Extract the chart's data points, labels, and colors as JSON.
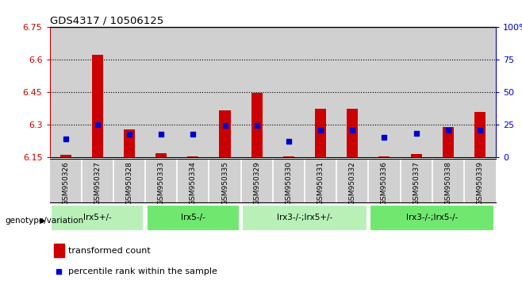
{
  "title": "GDS4317 / 10506125",
  "samples": [
    "GSM950326",
    "GSM950327",
    "GSM950328",
    "GSM950333",
    "GSM950334",
    "GSM950335",
    "GSM950329",
    "GSM950330",
    "GSM950331",
    "GSM950332",
    "GSM950336",
    "GSM950337",
    "GSM950338",
    "GSM950339"
  ],
  "red_values": [
    6.16,
    6.62,
    6.28,
    6.17,
    6.155,
    6.365,
    6.445,
    6.155,
    6.375,
    6.375,
    6.155,
    6.165,
    6.29,
    6.36
  ],
  "blue_values": [
    6.235,
    6.3,
    6.258,
    6.258,
    6.258,
    6.298,
    6.298,
    6.225,
    6.275,
    6.275,
    6.242,
    6.262,
    6.275,
    6.275
  ],
  "ymin": 6.15,
  "ymax": 6.75,
  "yticks_left": [
    6.15,
    6.3,
    6.45,
    6.6,
    6.75
  ],
  "ytick_left_labels": [
    "6.15",
    "6.3",
    "6.45",
    "6.6",
    "6.75"
  ],
  "yticks_right_pct": [
    0,
    25,
    50,
    75,
    100
  ],
  "ytick_right_labels": [
    "0",
    "25",
    "50",
    "75",
    "100%"
  ],
  "groups": [
    {
      "label": "lrx5+/-",
      "start": 0,
      "end": 3,
      "color": "#b8f0b8"
    },
    {
      "label": "lrx5-/-",
      "start": 3,
      "end": 6,
      "color": "#70e870"
    },
    {
      "label": "lrx3-/-;lrx5+/-",
      "start": 6,
      "end": 10,
      "color": "#b8f0b8"
    },
    {
      "label": "lrx3-/-;lrx5-/-",
      "start": 10,
      "end": 14,
      "color": "#70e870"
    }
  ],
  "genotype_label": "genotype/variation",
  "legend_red": "transformed count",
  "legend_blue": "percentile rank within the sample",
  "bar_width": 0.35,
  "red_color": "#cc0000",
  "blue_color": "#0000cc",
  "col_bg_color": "#d0d0d0",
  "plot_bg_color": "#ffffff",
  "top_border_color": "#000000",
  "grid_color": "#000000"
}
